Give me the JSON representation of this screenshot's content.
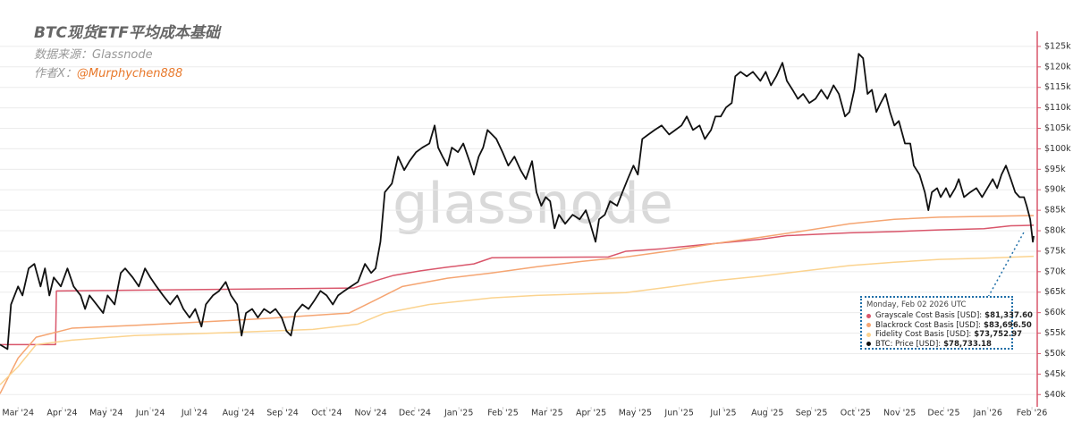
{
  "chart_data": {
    "type": "line",
    "title": "BTC现货ETF平均成本基础",
    "source": "数据来源：Glassnode",
    "author_prefix": "作者X：",
    "author_handle": "@Murphychen888",
    "watermark": "glassnode",
    "tooltip_date": "Monday, Feb 02 2026 UTC",
    "xlim": [
      -0.41,
      23.12
    ],
    "xticks": [
      {
        "value": 0,
        "label": "Mar '24"
      },
      {
        "value": 1,
        "label": "Apr '24"
      },
      {
        "value": 2,
        "label": "May '24"
      },
      {
        "value": 3,
        "label": "Jun '24"
      },
      {
        "value": 4,
        "label": "Jul '24"
      },
      {
        "value": 5,
        "label": "Aug '24"
      },
      {
        "value": 6,
        "label": "Sep '24"
      },
      {
        "value": 7,
        "label": "Oct '24"
      },
      {
        "value": 8,
        "label": "Nov '24"
      },
      {
        "value": 9,
        "label": "Dec '24"
      },
      {
        "value": 10,
        "label": "Jan '25"
      },
      {
        "value": 11,
        "label": "Feb '25"
      },
      {
        "value": 12,
        "label": "Mar '25"
      },
      {
        "value": 13,
        "label": "Apr '25"
      },
      {
        "value": 14,
        "label": "May '25"
      },
      {
        "value": 15,
        "label": "Jun '25"
      },
      {
        "value": 16,
        "label": "Jul '25"
      },
      {
        "value": 17,
        "label": "Aug '25"
      },
      {
        "value": 18,
        "label": "Sep '25"
      },
      {
        "value": 19,
        "label": "Oct '25"
      },
      {
        "value": 20,
        "label": "Nov '25"
      },
      {
        "value": 21,
        "label": "Dec '25"
      },
      {
        "value": 22,
        "label": "Jan '26"
      },
      {
        "value": 23,
        "label": "Feb '26"
      }
    ],
    "ylim": [
      37,
      127.6
    ],
    "yticks": [
      {
        "value": 40,
        "label": "$40k"
      },
      {
        "value": 45,
        "label": "$45k"
      },
      {
        "value": 50,
        "label": "$50k"
      },
      {
        "value": 55,
        "label": "$55k"
      },
      {
        "value": 60,
        "label": "$60k"
      },
      {
        "value": 65,
        "label": "$65k"
      },
      {
        "value": 70,
        "label": "$70k"
      },
      {
        "value": 75,
        "label": "$75k"
      },
      {
        "value": 80,
        "label": "$80k"
      },
      {
        "value": 85,
        "label": "$85k"
      },
      {
        "value": 90,
        "label": "$90k"
      },
      {
        "value": 95,
        "label": "$95k"
      },
      {
        "value": 100,
        "label": "$100k"
      },
      {
        "value": 105,
        "label": "$105k"
      },
      {
        "value": 110,
        "label": "$110k"
      },
      {
        "value": 115,
        "label": "$115k"
      },
      {
        "value": 120,
        "label": "$120k"
      },
      {
        "value": 125,
        "label": "$125k"
      }
    ],
    "grid": true,
    "series": [
      {
        "name": "Grayscale Cost Basis [USD]",
        "color": "#d9566b",
        "last_label": "$81,337.60",
        "x": [
          -0.41,
          0.85,
          0.87,
          7.61,
          8.11,
          8.52,
          9.13,
          9.74,
          10.34,
          10.75,
          13.39,
          13.79,
          14.6,
          15.82,
          16.84,
          17.44,
          18.86,
          19.88,
          20.89,
          21.91,
          22.52,
          23.04
        ],
        "values": [
          52.2,
          52.2,
          65.3,
          66.0,
          67.8,
          69.1,
          70.2,
          71.1,
          71.9,
          73.4,
          73.6,
          75.0,
          75.6,
          76.9,
          77.9,
          78.8,
          79.5,
          79.8,
          80.2,
          80.5,
          81.2,
          81.3376
        ]
      },
      {
        "name": "Blackrock Cost Basis [USD]",
        "color": "#f5a572",
        "last_label": "$83,696.50",
        "x": [
          -0.41,
          0,
          0.41,
          1.22,
          2.64,
          4.67,
          5.68,
          7.51,
          8.11,
          8.72,
          9.74,
          10.75,
          11.76,
          12.78,
          13.79,
          14.81,
          15.82,
          16.84,
          17.85,
          18.86,
          19.88,
          20.89,
          21.91,
          23.04
        ],
        "values": [
          40.2,
          48.9,
          54.0,
          56.2,
          56.9,
          58.0,
          58.6,
          59.9,
          63.1,
          66.4,
          68.4,
          69.7,
          71.2,
          72.5,
          73.6,
          75.1,
          76.9,
          78.4,
          80.0,
          81.7,
          82.8,
          83.3,
          83.5,
          83.6965
        ]
      },
      {
        "name": "Fidelity Cost Basis [USD]",
        "color": "#fbd38f",
        "last_label": "$73,752.97",
        "x": [
          -0.41,
          0,
          0.41,
          1.22,
          2.64,
          4.67,
          6.69,
          7.71,
          8.32,
          9.33,
          10.75,
          11.76,
          13.79,
          14.81,
          15.82,
          16.84,
          17.85,
          18.86,
          19.88,
          20.89,
          21.91,
          23.04
        ],
        "values": [
          42.4,
          46.8,
          52.2,
          53.3,
          54.4,
          55.1,
          55.9,
          57.2,
          59.9,
          62.0,
          63.6,
          64.2,
          64.9,
          66.3,
          67.8,
          68.9,
          70.2,
          71.5,
          72.3,
          73.0,
          73.3,
          73.75297
        ]
      },
      {
        "name": "BTC: Price [USD]",
        "color": "#111111",
        "last_label": "$78,733.18",
        "x": [
          -0.41,
          -0.24,
          -0.16,
          0,
          0.1,
          0.24,
          0.37,
          0.51,
          0.61,
          0.71,
          0.81,
          0.97,
          1.12,
          1.26,
          1.42,
          1.52,
          1.62,
          1.78,
          1.93,
          2.03,
          2.19,
          2.33,
          2.43,
          2.6,
          2.74,
          2.88,
          3.0,
          3.14,
          3.29,
          3.45,
          3.61,
          3.75,
          3.89,
          4.02,
          4.16,
          4.26,
          4.42,
          4.56,
          4.71,
          4.83,
          4.97,
          5.07,
          5.17,
          5.31,
          5.44,
          5.58,
          5.72,
          5.84,
          5.98,
          6.09,
          6.19,
          6.29,
          6.45,
          6.59,
          6.73,
          6.86,
          7.0,
          7.14,
          7.26,
          7.4,
          7.55,
          7.71,
          7.87,
          8.01,
          8.11,
          8.22,
          8.32,
          8.48,
          8.62,
          8.76,
          8.88,
          9.03,
          9.17,
          9.33,
          9.45,
          9.53,
          9.63,
          9.74,
          9.84,
          9.98,
          10.1,
          10.24,
          10.34,
          10.45,
          10.55,
          10.65,
          10.75,
          10.85,
          10.99,
          11.12,
          11.26,
          11.4,
          11.52,
          11.66,
          11.76,
          11.87,
          11.97,
          12.07,
          12.17,
          12.27,
          12.41,
          12.58,
          12.74,
          12.88,
          12.98,
          13.1,
          13.18,
          13.31,
          13.43,
          13.59,
          13.71,
          13.83,
          13.96,
          14.06,
          14.16,
          14.3,
          14.44,
          14.6,
          14.77,
          14.91,
          15.05,
          15.17,
          15.31,
          15.46,
          15.58,
          15.72,
          15.82,
          15.94,
          16.06,
          16.19,
          16.27,
          16.39,
          16.53,
          16.67,
          16.84,
          16.96,
          17.08,
          17.2,
          17.34,
          17.44,
          17.57,
          17.69,
          17.81,
          17.95,
          18.09,
          18.22,
          18.36,
          18.5,
          18.62,
          18.76,
          18.86,
          18.97,
          19.07,
          19.17,
          19.27,
          19.37,
          19.47,
          19.57,
          19.68,
          19.78,
          19.88,
          19.98,
          20.12,
          20.24,
          20.32,
          20.45,
          20.57,
          20.65,
          20.73,
          20.85,
          20.93,
          21.05,
          21.14,
          21.26,
          21.34,
          21.46,
          21.6,
          21.74,
          21.87,
          21.99,
          22.11,
          22.21,
          22.31,
          22.41,
          22.52,
          22.62,
          22.72,
          22.82,
          22.88,
          22.96,
          23.02,
          23.04
        ],
        "values": [
          52.2,
          51.1,
          62.0,
          66.4,
          64.2,
          70.8,
          71.9,
          66.4,
          70.8,
          64.2,
          68.6,
          66.4,
          70.8,
          66.4,
          64.2,
          60.9,
          64.2,
          62.0,
          59.9,
          64.2,
          62.0,
          69.7,
          70.8,
          68.6,
          66.4,
          70.8,
          68.6,
          66.4,
          64.2,
          62.0,
          64.2,
          60.9,
          58.8,
          60.9,
          56.6,
          62.0,
          64.2,
          65.3,
          67.5,
          64.2,
          62.0,
          54.4,
          59.9,
          60.9,
          58.8,
          60.9,
          59.9,
          60.9,
          58.8,
          55.5,
          54.4,
          59.9,
          62.0,
          60.9,
          63.1,
          65.3,
          64.2,
          62.0,
          64.2,
          65.3,
          66.4,
          67.5,
          71.9,
          69.7,
          70.8,
          77.3,
          89.4,
          91.5,
          98.1,
          94.8,
          97.0,
          99.2,
          100.3,
          101.3,
          105.7,
          100.3,
          98.1,
          95.9,
          100.3,
          99.2,
          101.3,
          97.0,
          93.7,
          98.1,
          100.3,
          104.6,
          103.5,
          102.4,
          99.2,
          95.9,
          98.1,
          94.8,
          92.6,
          97.0,
          89.4,
          86.1,
          88.2,
          87.2,
          80.6,
          83.9,
          81.7,
          83.9,
          82.8,
          85.0,
          81.7,
          77.3,
          82.8,
          83.9,
          87.2,
          86.1,
          89.4,
          92.6,
          95.9,
          93.7,
          102.4,
          103.5,
          104.6,
          105.7,
          103.5,
          104.6,
          105.7,
          107.9,
          104.6,
          105.7,
          102.4,
          104.6,
          107.9,
          107.9,
          110.1,
          111.2,
          117.7,
          118.8,
          117.7,
          118.8,
          116.6,
          118.8,
          115.5,
          117.7,
          121.0,
          116.6,
          114.4,
          112.2,
          113.4,
          111.2,
          112.2,
          114.4,
          112.2,
          115.5,
          113.4,
          107.9,
          109.0,
          114.4,
          123.2,
          122.1,
          113.4,
          114.4,
          109.0,
          111.2,
          113.4,
          109.0,
          105.7,
          106.8,
          101.3,
          101.3,
          95.9,
          93.7,
          89.4,
          85.0,
          89.4,
          90.4,
          88.2,
          90.4,
          88.2,
          90.4,
          92.6,
          88.2,
          89.4,
          90.4,
          88.2,
          90.4,
          92.6,
          90.4,
          93.7,
          95.9,
          92.6,
          89.4,
          88.2,
          88.2,
          86.1,
          82.8,
          77.3,
          78.73318
        ]
      }
    ]
  }
}
